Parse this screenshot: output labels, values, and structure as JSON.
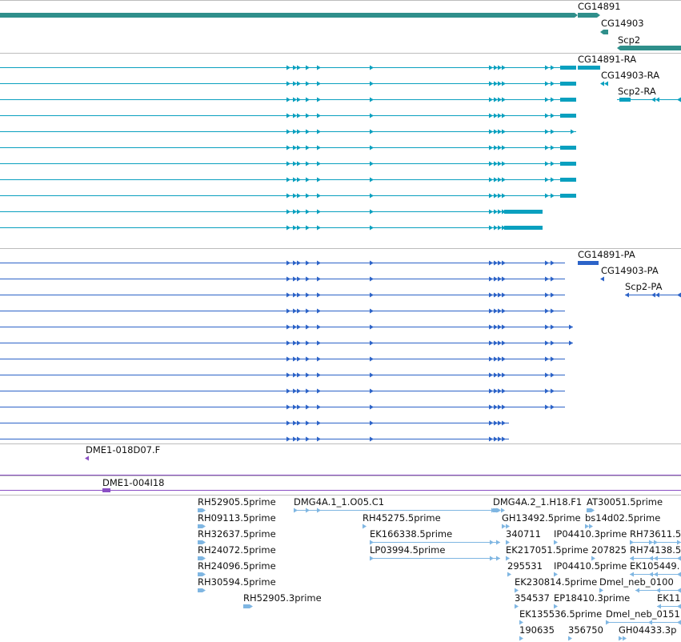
{
  "colors": {
    "gene": "#2f8f8b",
    "mrna": "#0aa0bf",
    "protein": "#2c63c8",
    "clone": "#8a4fc4",
    "est": "#7fb6e2",
    "divider": "#bcbcbc"
  },
  "tracks": {
    "genes": {
      "items": [
        {
          "label": "CG14891"
        },
        {
          "label": "CG14903"
        },
        {
          "label": "Scp2"
        }
      ]
    },
    "mrnas": {
      "items": [
        {
          "label": "CG14891-RA"
        },
        {
          "label": "CG14903-RA"
        },
        {
          "label": "Scp2-RA"
        }
      ]
    },
    "proteins": {
      "items": [
        {
          "label": "CG14891-PA"
        },
        {
          "label": "CG14903-PA"
        },
        {
          "label": "Scp2-PA"
        }
      ]
    },
    "clones": {
      "items": [
        {
          "label": "DME1-018D07.F"
        },
        {
          "label": "DME1-004I18"
        }
      ]
    },
    "ests": {
      "items": [
        {
          "label": "RH52905.5prime"
        },
        {
          "label": "RH09113.5prime"
        },
        {
          "label": "RH32637.5prime"
        },
        {
          "label": "RH24072.5prime"
        },
        {
          "label": "RH24096.5prime"
        },
        {
          "label": "RH30594.5prime"
        },
        {
          "label": "RH52905.3prime"
        },
        {
          "label": "DMG4A.1_1.O05.C1"
        },
        {
          "label": "RH45275.5prime"
        },
        {
          "label": "EK166338.5prime"
        },
        {
          "label": "LP03994.5prime"
        },
        {
          "label": "DMG4A.2_1.H18.F1"
        },
        {
          "label": "AT30051.5prime"
        },
        {
          "label": "GH13492.5prime"
        },
        {
          "label": "bs14d02.5prime"
        },
        {
          "label": "340711"
        },
        {
          "label": "IP04410.3prime"
        },
        {
          "label": "RH73611.5"
        },
        {
          "label": "EK217051.5prime"
        },
        {
          "label": "207825"
        },
        {
          "label": "RH74138.5"
        },
        {
          "label": "295531"
        },
        {
          "label": "IP04410.5prime"
        },
        {
          "label": "EK105449."
        },
        {
          "label": "EK230814.5prime"
        },
        {
          "label": "Dmel_neb_0100"
        },
        {
          "label": "354537"
        },
        {
          "label": "EP18410.3prime"
        },
        {
          "label": "EK11"
        },
        {
          "label": "EK135536.5prime"
        },
        {
          "label": "Dmel_neb_0151"
        },
        {
          "label": "190635"
        },
        {
          "label": "356750"
        },
        {
          "label": "GH04433.3p"
        }
      ]
    }
  }
}
